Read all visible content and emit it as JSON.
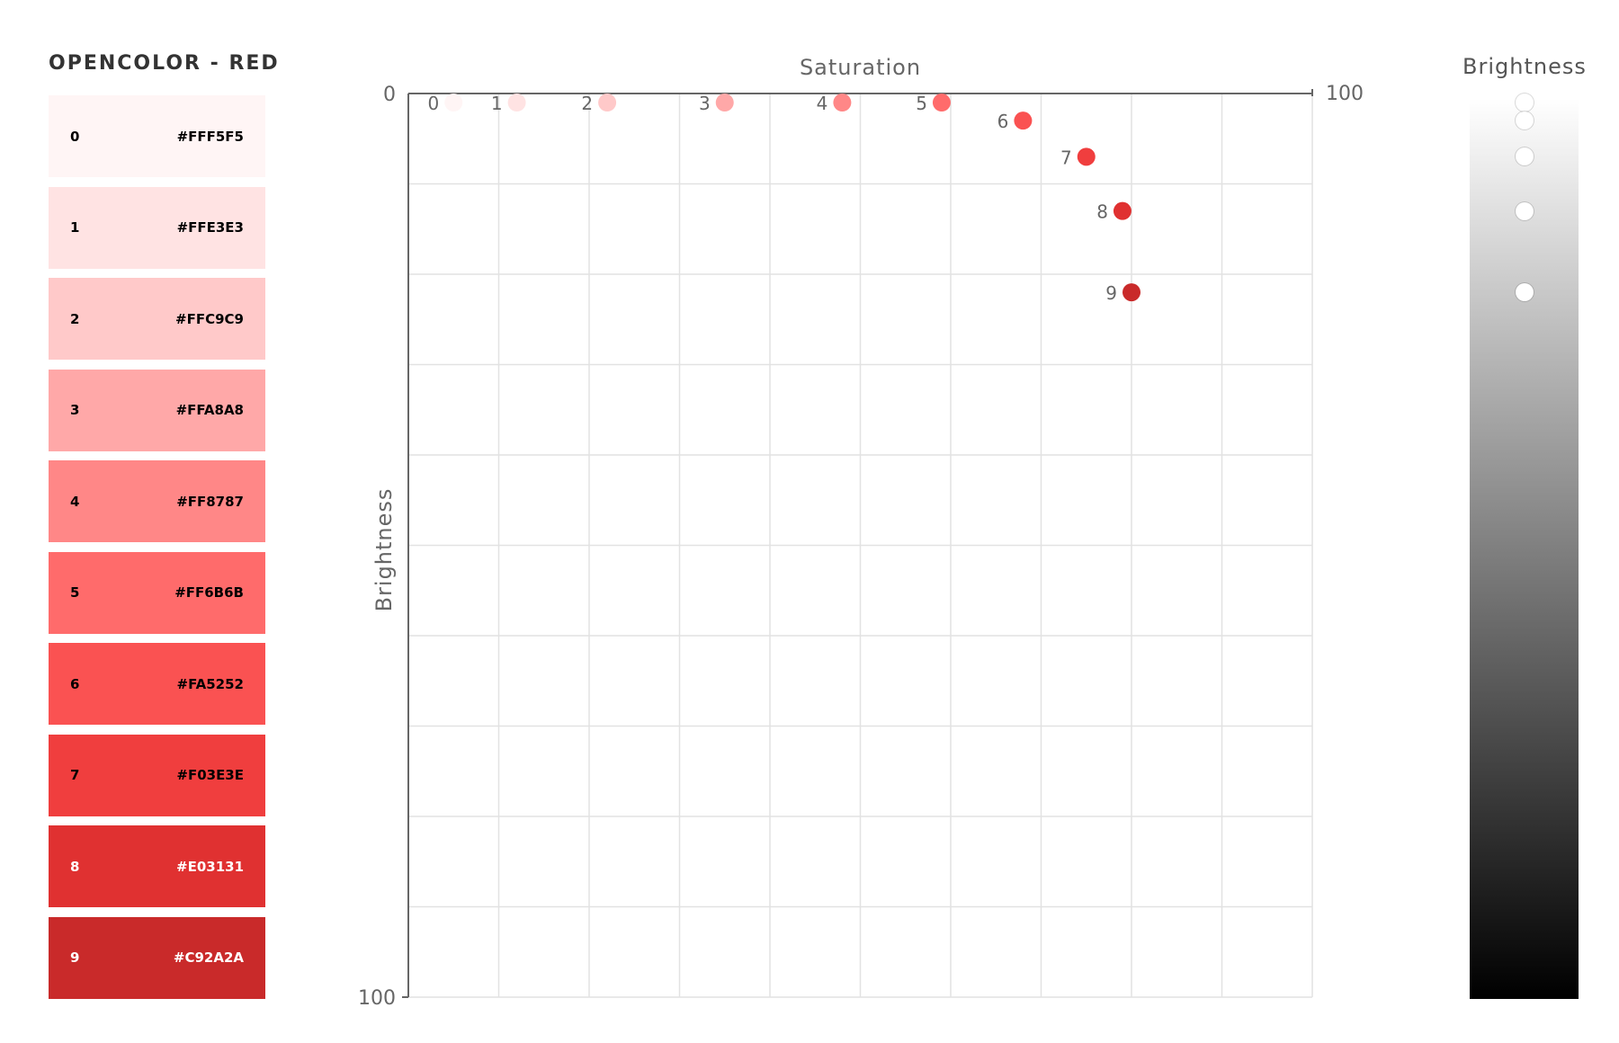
{
  "title": "OPENCOLOR - RED",
  "swatches": [
    {
      "index": "0",
      "hex": "#FFF5F5",
      "text_color": "#000000"
    },
    {
      "index": "1",
      "hex": "#FFE3E3",
      "text_color": "#000000"
    },
    {
      "index": "2",
      "hex": "#FFC9C9",
      "text_color": "#000000"
    },
    {
      "index": "3",
      "hex": "#FFA8A8",
      "text_color": "#000000"
    },
    {
      "index": "4",
      "hex": "#FF8787",
      "text_color": "#000000"
    },
    {
      "index": "5",
      "hex": "#FF6B6B",
      "text_color": "#000000"
    },
    {
      "index": "6",
      "hex": "#FA5252",
      "text_color": "#000000"
    },
    {
      "index": "7",
      "hex": "#F03E3E",
      "text_color": "#000000"
    },
    {
      "index": "8",
      "hex": "#E03131",
      "text_color": "#ffffff"
    },
    {
      "index": "9",
      "hex": "#C92A2A",
      "text_color": "#ffffff"
    }
  ],
  "chart_data": {
    "type": "scatter",
    "xlabel": "Saturation",
    "ylabel": "Brightness",
    "xlim": [
      0,
      100
    ],
    "ylim": [
      0,
      100
    ],
    "x_tick_labels": [
      "0",
      "100"
    ],
    "y_tick_labels": [
      "0",
      "100"
    ],
    "y_inverted": true,
    "grid": true,
    "points": [
      {
        "label": "0",
        "saturation": 5,
        "brightness": 1,
        "color": "#FFF5F5"
      },
      {
        "label": "1",
        "saturation": 12,
        "brightness": 1,
        "color": "#FFE3E3"
      },
      {
        "label": "2",
        "saturation": 22,
        "brightness": 1,
        "color": "#FFC9C9"
      },
      {
        "label": "3",
        "saturation": 35,
        "brightness": 1,
        "color": "#FFA8A8"
      },
      {
        "label": "4",
        "saturation": 48,
        "brightness": 1,
        "color": "#FF8787"
      },
      {
        "label": "5",
        "saturation": 59,
        "brightness": 1,
        "color": "#FF6B6B"
      },
      {
        "label": "6",
        "saturation": 68,
        "brightness": 3,
        "color": "#FA5252"
      },
      {
        "label": "7",
        "saturation": 75,
        "brightness": 7,
        "color": "#F03E3E"
      },
      {
        "label": "8",
        "saturation": 79,
        "brightness": 13,
        "color": "#E03131"
      },
      {
        "label": "9",
        "saturation": 80,
        "brightness": 22,
        "color": "#C92A2A"
      }
    ]
  },
  "brightness_panel": {
    "title": "Brightness",
    "levels": [
      1,
      3,
      7,
      13,
      22
    ]
  }
}
